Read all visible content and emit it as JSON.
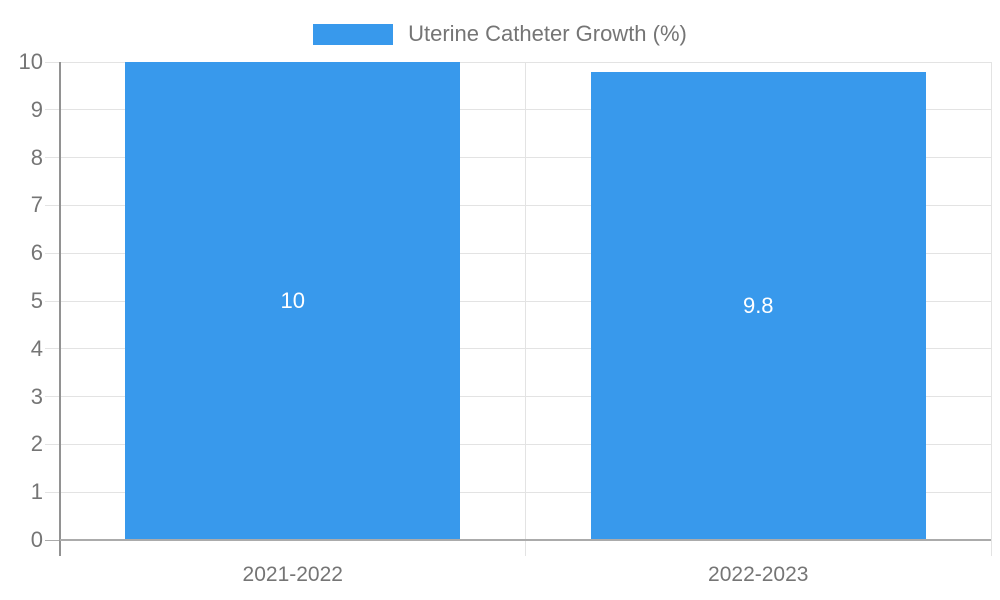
{
  "legend": {
    "swatch_color": "#3899EC",
    "label": "Uterine Catheter Growth (%)"
  },
  "chart_data": {
    "type": "bar",
    "categories": [
      "2021-2022",
      "2022-2023"
    ],
    "values": [
      10,
      9.8
    ],
    "data_labels": [
      "10",
      "9.8"
    ],
    "series_name": "Uterine Catheter Growth (%)",
    "title": "",
    "xlabel": "",
    "ylabel": "",
    "ylim": [
      0,
      10
    ],
    "yticks": [
      0,
      1,
      2,
      3,
      4,
      5,
      6,
      7,
      8,
      9,
      10
    ],
    "grid": true,
    "legend_position": "top-center",
    "colors": {
      "bar": "#3899EC",
      "gridline": "#E3E3E3",
      "axis_line": "#929292",
      "baseline": "#ABABAB",
      "tick_text": "#757575",
      "bar_label_text": "#FFFFFF"
    }
  }
}
